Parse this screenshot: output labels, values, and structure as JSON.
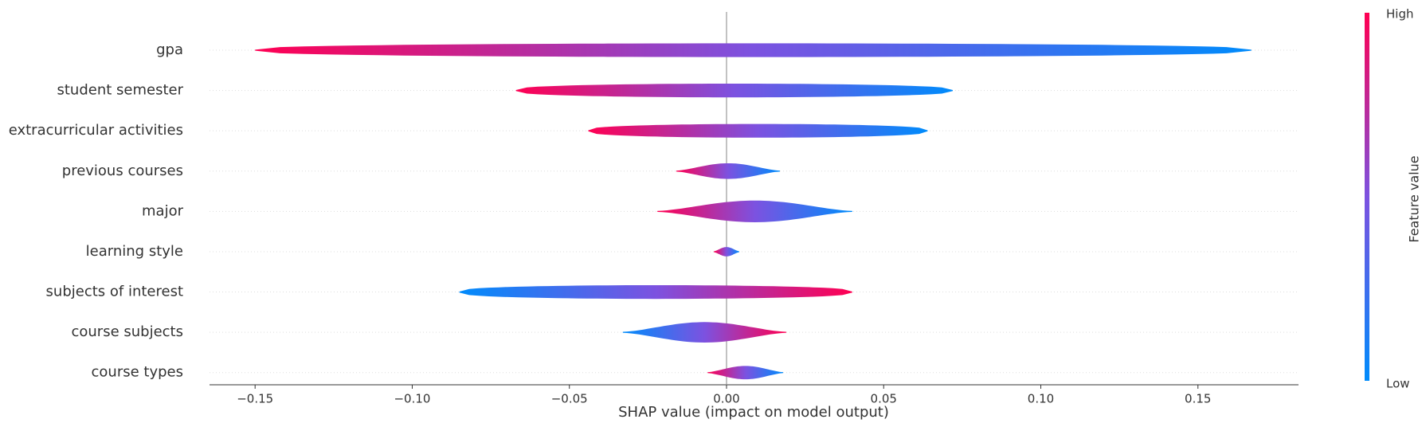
{
  "chart_data": {
    "type": "violin",
    "x_label": "SHAP value (impact on model output)",
    "colorbar": {
      "high": "High",
      "low": "Low",
      "label": "Feature value",
      "high_color": "#ff0052",
      "low_color": "#008bfb"
    },
    "xlim": [
      -0.1645,
      0.182
    ],
    "xticks": [
      {
        "value": -0.15,
        "label": "−0.15"
      },
      {
        "value": -0.1,
        "label": "−0.10"
      },
      {
        "value": -0.05,
        "label": "−0.05"
      },
      {
        "value": 0,
        "label": "0.00"
      },
      0.05,
      {
        "value": 0.1,
        "label": "0.10"
      },
      0.15
    ],
    "features": [
      {
        "name": "gpa",
        "min": -0.15,
        "max": 0.167,
        "high_side": "left"
      },
      {
        "name": "student semester",
        "min": -0.067,
        "max": 0.072,
        "high_side": "left"
      },
      {
        "name": "extracurricular activities",
        "min": -0.044,
        "max": 0.064,
        "high_side": "left"
      },
      {
        "name": "previous courses",
        "min": -0.016,
        "max": 0.017,
        "high_side": "left"
      },
      {
        "name": "major",
        "min": -0.022,
        "max": 0.04,
        "high_side": "left"
      },
      {
        "name": "learning style",
        "min": -0.004,
        "max": 0.004,
        "high_side": "left"
      },
      {
        "name": "subjects of interest",
        "min": -0.085,
        "max": 0.04,
        "high_side": "right"
      },
      {
        "name": "course subjects",
        "min": -0.033,
        "max": 0.019,
        "high_side": "right"
      },
      {
        "name": "course types",
        "min": -0.006,
        "max": 0.018,
        "high_side": "left"
      }
    ]
  }
}
